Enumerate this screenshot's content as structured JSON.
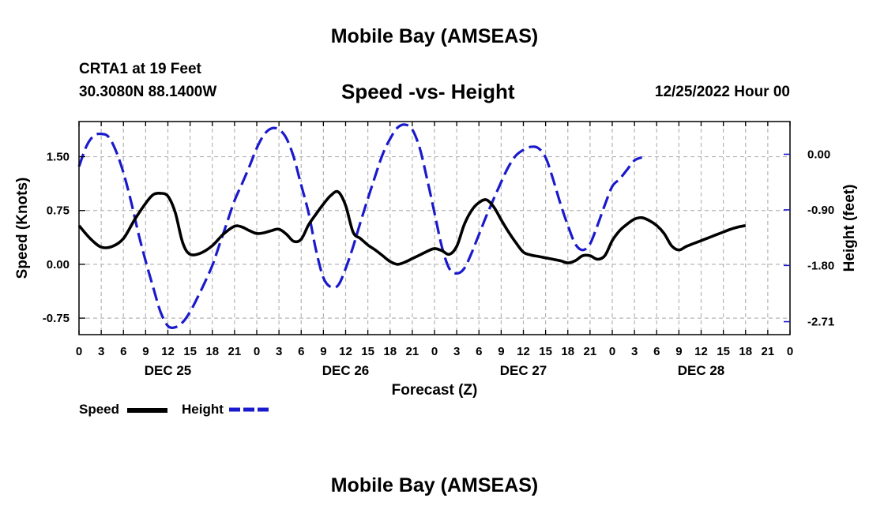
{
  "page": {
    "title_top": "Mobile Bay (AMSEAS)",
    "title_bottom": "Mobile Bay (AMSEAS)",
    "station": "CRTA1 at 19 Feet",
    "coords": "30.3080N  88.1400W",
    "subtitle": "Speed -vs- Height",
    "run_time": "12/25/2022 Hour 00"
  },
  "legend": {
    "speed_label": "Speed",
    "height_label": "Height",
    "speed_color": "#000000",
    "height_color": "#1a1acc"
  },
  "chart_data": {
    "type": "line",
    "title": "Speed -vs- Height",
    "xlabel": "Forecast (Z)",
    "ylabel_left": "Speed (Knots)",
    "ylabel_right": "Height (feet)",
    "x_range_hours": [
      0,
      96
    ],
    "x_tick_step_hours": 3,
    "x_tick_labels": [
      "0",
      "3",
      "6",
      "9",
      "12",
      "15",
      "18",
      "21",
      "0",
      "3",
      "6",
      "9",
      "12",
      "15",
      "18",
      "21",
      "0",
      "3",
      "6",
      "9",
      "12",
      "15",
      "18",
      "21",
      "0",
      "3",
      "6",
      "9",
      "12",
      "15",
      "18",
      "21",
      "0"
    ],
    "day_labels": [
      {
        "hour": 12,
        "label": "DEC 25"
      },
      {
        "hour": 36,
        "label": "DEC 26"
      },
      {
        "hour": 60,
        "label": "DEC 27"
      },
      {
        "hour": 84,
        "label": "DEC 28"
      }
    ],
    "ylim_left": [
      -0.98,
      1.99
    ],
    "yticks_left": [
      {
        "value": -0.75,
        "label": "-0.75"
      },
      {
        "value": 0.0,
        "label": "0.00"
      },
      {
        "value": 0.75,
        "label": "0.75"
      },
      {
        "value": 1.5,
        "label": "1.50"
      }
    ],
    "ylim_right": [
      -2.92,
      0.53
    ],
    "yticks_right": [
      {
        "value": -2.71,
        "label": "-2.71"
      },
      {
        "value": -1.8,
        "label": "-1.80"
      },
      {
        "value": -0.9,
        "label": "-0.90"
      },
      {
        "value": 0.0,
        "label": "0.00"
      }
    ],
    "grid": true,
    "series": [
      {
        "name": "Speed",
        "axis": "left",
        "style": "solid",
        "color": "#000000",
        "points": [
          [
            0,
            0.54
          ],
          [
            1.5,
            0.36
          ],
          [
            3,
            0.24
          ],
          [
            4.5,
            0.25
          ],
          [
            6,
            0.36
          ],
          [
            7.5,
            0.62
          ],
          [
            9,
            0.85
          ],
          [
            10,
            0.97
          ],
          [
            11,
            0.99
          ],
          [
            12,
            0.95
          ],
          [
            13,
            0.72
          ],
          [
            14,
            0.3
          ],
          [
            15,
            0.14
          ],
          [
            16.5,
            0.16
          ],
          [
            18,
            0.26
          ],
          [
            19.5,
            0.42
          ],
          [
            21,
            0.53
          ],
          [
            22,
            0.52
          ],
          [
            23,
            0.47
          ],
          [
            24,
            0.43
          ],
          [
            25,
            0.44
          ],
          [
            26,
            0.47
          ],
          [
            27,
            0.49
          ],
          [
            28,
            0.42
          ],
          [
            29,
            0.32
          ],
          [
            30,
            0.35
          ],
          [
            31,
            0.55
          ],
          [
            32,
            0.7
          ],
          [
            33,
            0.84
          ],
          [
            34,
            0.96
          ],
          [
            35,
            1.01
          ],
          [
            36,
            0.82
          ],
          [
            37,
            0.45
          ],
          [
            38,
            0.36
          ],
          [
            39,
            0.27
          ],
          [
            40,
            0.2
          ],
          [
            41,
            0.12
          ],
          [
            42,
            0.04
          ],
          [
            43,
            0.0
          ],
          [
            44,
            0.03
          ],
          [
            45,
            0.08
          ],
          [
            46,
            0.13
          ],
          [
            47,
            0.18
          ],
          [
            48,
            0.22
          ],
          [
            49,
            0.19
          ],
          [
            50,
            0.14
          ],
          [
            51,
            0.25
          ],
          [
            52,
            0.55
          ],
          [
            53,
            0.75
          ],
          [
            54,
            0.86
          ],
          [
            55,
            0.9
          ],
          [
            56,
            0.8
          ],
          [
            57,
            0.62
          ],
          [
            58,
            0.45
          ],
          [
            59,
            0.3
          ],
          [
            60,
            0.17
          ],
          [
            61,
            0.13
          ],
          [
            62,
            0.11
          ],
          [
            63,
            0.09
          ],
          [
            64,
            0.07
          ],
          [
            65,
            0.05
          ],
          [
            66,
            0.02
          ],
          [
            67,
            0.05
          ],
          [
            68,
            0.12
          ],
          [
            69,
            0.12
          ],
          [
            70,
            0.07
          ],
          [
            71,
            0.12
          ],
          [
            72,
            0.33
          ],
          [
            73,
            0.47
          ],
          [
            74,
            0.56
          ],
          [
            75,
            0.63
          ],
          [
            76,
            0.65
          ],
          [
            77,
            0.61
          ],
          [
            78,
            0.54
          ],
          [
            79,
            0.43
          ],
          [
            80,
            0.26
          ],
          [
            81,
            0.2
          ],
          [
            82,
            0.25
          ],
          [
            83,
            0.29
          ],
          [
            84,
            0.33
          ],
          [
            85,
            0.37
          ],
          [
            86,
            0.41
          ],
          [
            87,
            0.45
          ],
          [
            88,
            0.49
          ],
          [
            89,
            0.52
          ],
          [
            90,
            0.54
          ]
        ]
      },
      {
        "name": "Height",
        "axis": "right",
        "style": "dashed",
        "color": "#1a1acc",
        "points": [
          [
            0,
            -0.2
          ],
          [
            1,
            0.13
          ],
          [
            2,
            0.3
          ],
          [
            3,
            0.33
          ],
          [
            4,
            0.28
          ],
          [
            5,
            0.05
          ],
          [
            6,
            -0.3
          ],
          [
            7,
            -0.75
          ],
          [
            8,
            -1.27
          ],
          [
            9,
            -1.73
          ],
          [
            10,
            -2.15
          ],
          [
            11,
            -2.55
          ],
          [
            12,
            -2.78
          ],
          [
            13,
            -2.8
          ],
          [
            14,
            -2.72
          ],
          [
            15,
            -2.55
          ],
          [
            16,
            -2.32
          ],
          [
            17,
            -2.07
          ],
          [
            18,
            -1.8
          ],
          [
            19,
            -1.45
          ],
          [
            20,
            -1.1
          ],
          [
            21,
            -0.75
          ],
          [
            22,
            -0.48
          ],
          [
            23,
            -0.2
          ],
          [
            24,
            0.1
          ],
          [
            25,
            0.32
          ],
          [
            26,
            0.42
          ],
          [
            27,
            0.4
          ],
          [
            28,
            0.26
          ],
          [
            29,
            -0.05
          ],
          [
            30,
            -0.5
          ],
          [
            31,
            -0.95
          ],
          [
            32,
            -1.55
          ],
          [
            33,
            -2.0
          ],
          [
            34,
            -2.15
          ],
          [
            35,
            -2.12
          ],
          [
            36,
            -1.85
          ],
          [
            37,
            -1.5
          ],
          [
            38,
            -1.1
          ],
          [
            39,
            -0.72
          ],
          [
            40,
            -0.35
          ],
          [
            41,
            0.0
          ],
          [
            42,
            0.25
          ],
          [
            43,
            0.43
          ],
          [
            44,
            0.48
          ],
          [
            45,
            0.4
          ],
          [
            46,
            0.1
          ],
          [
            47,
            -0.4
          ],
          [
            48,
            -0.95
          ],
          [
            49,
            -1.5
          ],
          [
            50,
            -1.85
          ],
          [
            51,
            -1.93
          ],
          [
            52,
            -1.85
          ],
          [
            53,
            -1.6
          ],
          [
            54,
            -1.3
          ],
          [
            55,
            -1.0
          ],
          [
            56,
            -0.72
          ],
          [
            57,
            -0.45
          ],
          [
            58,
            -0.2
          ],
          [
            59,
            -0.02
          ],
          [
            60,
            0.07
          ],
          [
            61,
            0.12
          ],
          [
            62,
            0.1
          ],
          [
            63,
            -0.05
          ],
          [
            64,
            -0.4
          ],
          [
            65,
            -0.8
          ],
          [
            66,
            -1.15
          ],
          [
            67,
            -1.45
          ],
          [
            68,
            -1.55
          ],
          [
            69,
            -1.45
          ],
          [
            70,
            -1.15
          ],
          [
            71,
            -0.82
          ],
          [
            72,
            -0.52
          ],
          [
            73,
            -0.4
          ],
          [
            74,
            -0.25
          ],
          [
            75,
            -0.1
          ],
          [
            76,
            -0.05
          ]
        ]
      }
    ]
  }
}
